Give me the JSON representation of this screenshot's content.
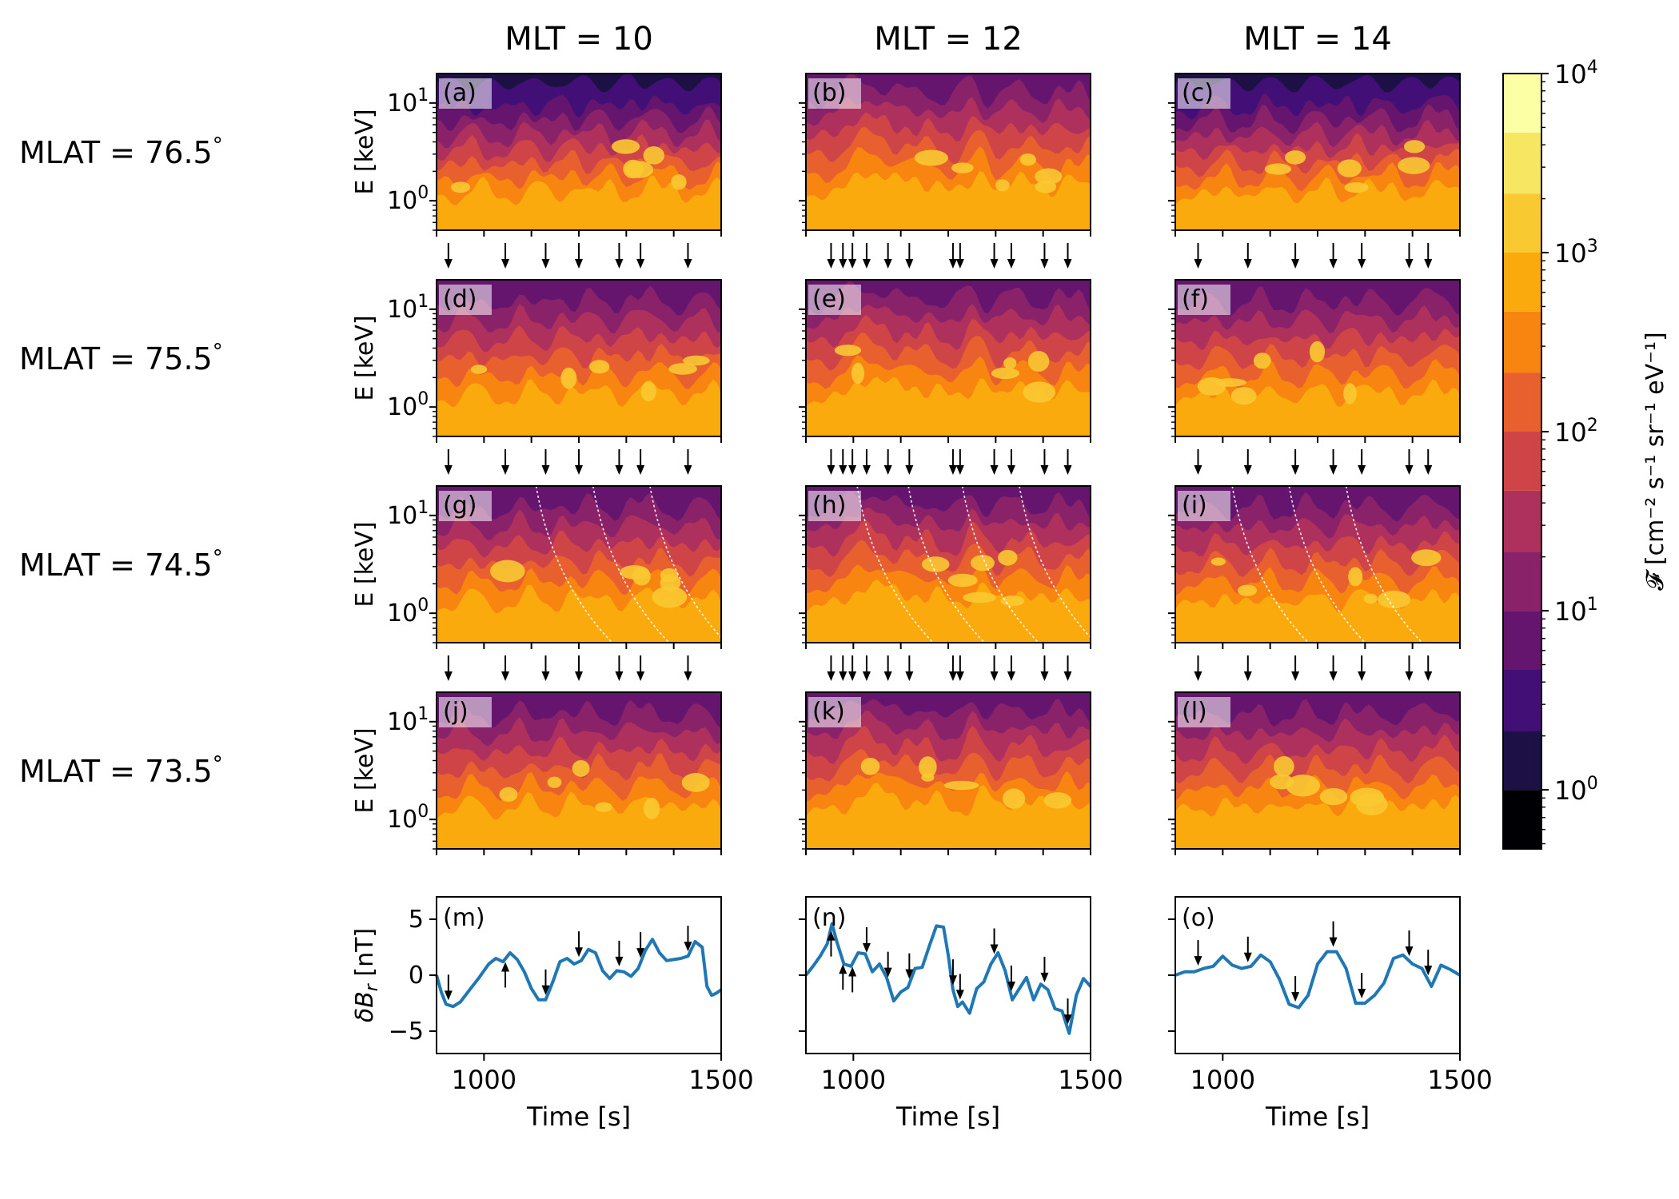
{
  "chart_data": {
    "type": "heatmap",
    "columns": [
      {
        "title": "MLT = 10",
        "arrow_times": [
          925,
          1045,
          1130,
          1200,
          1285,
          1330,
          1430
        ]
      },
      {
        "title": "MLT = 12",
        "arrow_times": [
          953,
          978,
          998,
          1028,
          1073,
          1118,
          1210,
          1225,
          1297,
          1333,
          1403,
          1452
        ]
      },
      {
        "title": "MLT = 14",
        "arrow_times": [
          948,
          1053,
          1153,
          1233,
          1293,
          1393,
          1433
        ]
      }
    ],
    "rows": [
      {
        "label": "MLAT = 76.5",
        "degree": "°"
      },
      {
        "label": "MLAT = 75.5",
        "degree": "°"
      },
      {
        "label": "MLAT = 74.5",
        "degree": "°"
      },
      {
        "label": "MLAT = 73.5",
        "degree": "°"
      }
    ],
    "panel_labels": [
      "(a)",
      "(b)",
      "(c)",
      "(d)",
      "(e)",
      "(f)",
      "(g)",
      "(h)",
      "(i)",
      "(j)",
      "(k)",
      "(l)",
      "(m)",
      "(n)",
      "(o)"
    ],
    "spectrogram": {
      "ylabel": "E [keV]",
      "yscale": "log",
      "ylim": [
        0.5,
        20
      ],
      "yticks": [
        {
          "base": "10",
          "exp": "0"
        },
        {
          "base": "10",
          "exp": "1"
        }
      ],
      "xlim": [
        900,
        1500
      ],
      "dispersion_lines_row": 2
    },
    "colorbar": {
      "label": "𝓕 [cm⁻² s⁻¹ sr⁻¹ eV⁻¹]",
      "levels_log10": [
        -0.33,
        0,
        0.33,
        0.67,
        1,
        1.33,
        1.67,
        2,
        2.33,
        2.67,
        3,
        3.33,
        3.67,
        4
      ],
      "colors": [
        "#000004",
        "#1c1044",
        "#410f75",
        "#65156e",
        "#8a226a",
        "#ae305c",
        "#cf4446",
        "#e8602d",
        "#f8850f",
        "#fbaa0e",
        "#f9c932",
        "#f6e662",
        "#fcffa4"
      ],
      "ticks": [
        {
          "base": "10",
          "exp": "0"
        },
        {
          "base": "10",
          "exp": "1"
        },
        {
          "base": "10",
          "exp": "2"
        },
        {
          "base": "10",
          "exp": "3"
        },
        {
          "base": "10",
          "exp": "4"
        }
      ]
    },
    "dB": {
      "ylabel_main": "δB",
      "ylabel_sub": "r",
      "ylabel_unit": " [nT]",
      "ylim": [
        -7,
        7
      ],
      "yticks": [
        "5",
        "0",
        "−5"
      ],
      "yticks_values": [
        5,
        0,
        -5
      ],
      "xlim": [
        900,
        1500
      ],
      "xticks": [
        "1000",
        "1500"
      ],
      "xticks_values": [
        1000,
        1500
      ],
      "xlabel": "Time [s]",
      "color": "#1f77b4",
      "series": [
        {
          "name": "MLT = 10",
          "t": [
            900,
            910,
            920,
            935,
            950,
            970,
            990,
            1010,
            1025,
            1040,
            1055,
            1070,
            1085,
            1100,
            1115,
            1130,
            1145,
            1160,
            1175,
            1190,
            1205,
            1220,
            1235,
            1250,
            1265,
            1280,
            1295,
            1310,
            1325,
            1340,
            1355,
            1370,
            1385,
            1400,
            1415,
            1430,
            1445,
            1460,
            1470,
            1480,
            1490,
            1500
          ],
          "v": [
            0,
            -1.5,
            -2.6,
            -2.8,
            -2.4,
            -1.3,
            -0.2,
            1.0,
            1.5,
            1.2,
            2.0,
            1.4,
            0.3,
            -1.2,
            -2.2,
            -2.2,
            -0.6,
            1.2,
            1.5,
            1.0,
            1.3,
            2.3,
            2.0,
            0.4,
            -0.3,
            0.4,
            0.3,
            -0.1,
            0.6,
            2.2,
            3.2,
            2.0,
            1.3,
            1.4,
            1.5,
            1.7,
            3.0,
            2.5,
            -1.0,
            -1.8,
            -1.6,
            -1.3
          ]
        },
        {
          "name": "MLT = 12",
          "t": [
            900,
            915,
            930,
            945,
            955,
            965,
            980,
            995,
            1010,
            1025,
            1040,
            1055,
            1070,
            1085,
            1100,
            1115,
            1130,
            1145,
            1160,
            1175,
            1190,
            1200,
            1210,
            1220,
            1230,
            1245,
            1260,
            1275,
            1290,
            1305,
            1320,
            1335,
            1350,
            1365,
            1380,
            1395,
            1410,
            1425,
            1440,
            1455,
            1470,
            1485,
            1500
          ],
          "v": [
            0,
            0.8,
            1.7,
            2.8,
            4.6,
            3.0,
            1.0,
            0.8,
            2.0,
            1.9,
            0.3,
            1.0,
            -0.2,
            -2.3,
            -1.5,
            -1.1,
            0.6,
            0.7,
            2.6,
            4.4,
            4.3,
            1.8,
            -1.3,
            -2.8,
            -2.4,
            -3.4,
            -1.2,
            -0.6,
            1.0,
            2.0,
            0.4,
            -2.2,
            -1.2,
            -0.2,
            -2.2,
            -0.8,
            -1.3,
            -3.0,
            -3.2,
            -5.2,
            -1.8,
            -0.3,
            -1.0
          ]
        },
        {
          "name": "MLT = 14",
          "t": [
            900,
            920,
            940,
            960,
            980,
            1000,
            1020,
            1040,
            1060,
            1080,
            1100,
            1120,
            1140,
            1160,
            1180,
            1200,
            1220,
            1240,
            1260,
            1280,
            1300,
            1320,
            1340,
            1360,
            1380,
            1400,
            1420,
            1440,
            1460,
            1480,
            1500
          ],
          "v": [
            0,
            0.3,
            0.3,
            0.6,
            0.8,
            1.7,
            0.9,
            0.6,
            0.8,
            1.8,
            1.2,
            -0.4,
            -2.6,
            -2.9,
            -1.8,
            1.0,
            2.1,
            2.1,
            0.6,
            -2.5,
            -2.5,
            -1.8,
            -0.7,
            1.5,
            1.8,
            1.0,
            0.6,
            -1.0,
            0.9,
            0.5,
            0.0
          ]
        }
      ]
    }
  }
}
